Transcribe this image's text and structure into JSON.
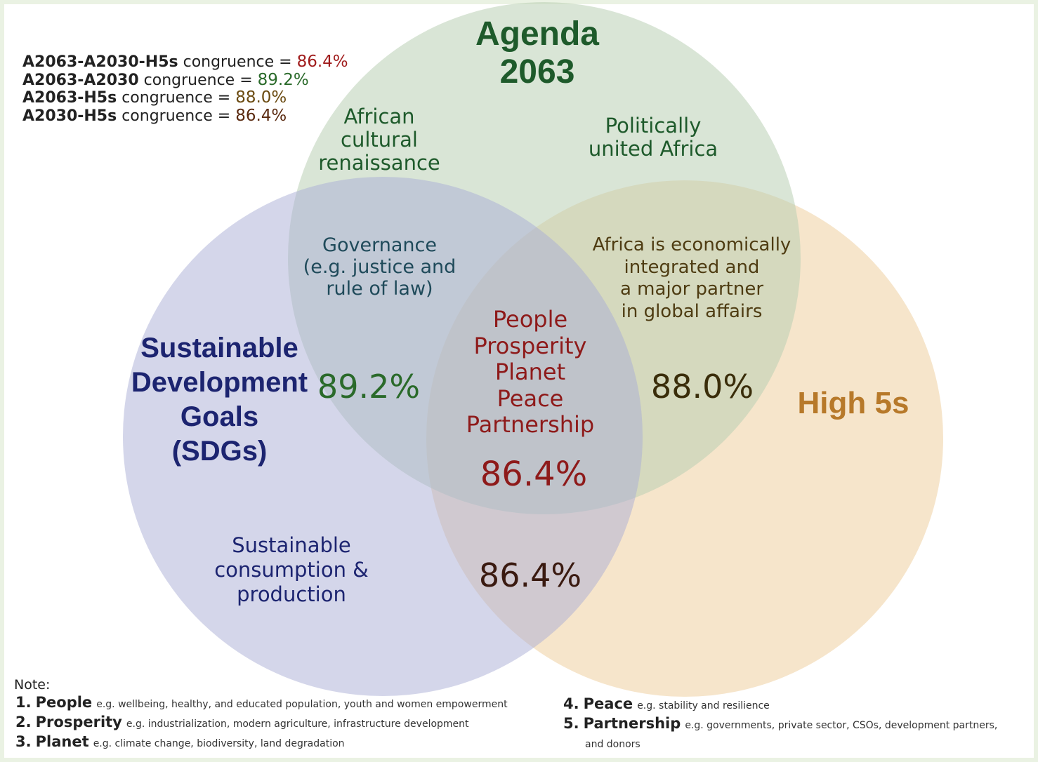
{
  "circles": {
    "agenda": {
      "title_line1": "Agenda",
      "title_line2": "2063",
      "fill": "#d4e2d0",
      "text_color": "#1e5a2b"
    },
    "sdg": {
      "title_lines": [
        "Sustainable",
        "Development",
        "Goals",
        "(SDGs)"
      ],
      "fill": "#cdd0e6",
      "text_color": "#1c2470"
    },
    "high5": {
      "title": "High 5s",
      "fill": "#f3dcb9",
      "text_color": "#b7792a"
    }
  },
  "regions": {
    "agenda_only_left": [
      "African",
      "cultural",
      "renaissance"
    ],
    "agenda_only_right": [
      "Politically",
      "united Africa"
    ],
    "agenda_sdg": [
      "Governance",
      "(e.g. justice and",
      "rule of law)"
    ],
    "agenda_sdg_value": "89.2%",
    "agenda_high5": [
      "Africa is economically",
      "integrated and",
      "a major partner",
      "in global affairs"
    ],
    "agenda_high5_value": "88.0%",
    "center": [
      "People",
      "Prosperity",
      "Planet",
      "Peace",
      "Partnership"
    ],
    "center_value": "86.4%",
    "sdg_only": [
      "Sustainable",
      "consumption &",
      "production"
    ],
    "sdg_high5_value": "86.4%"
  },
  "summary": [
    {
      "label": "A2063-A2030-H5s",
      "text": "congruence",
      "eq": " = ",
      "value": "86.4%",
      "color": "#a01c1c"
    },
    {
      "label": "A2063-A2030",
      "text": "congruence",
      "eq": " = ",
      "value": "89.2%",
      "color": "#2a6a2a"
    },
    {
      "label": "A2063-H5s",
      "text": "congruence",
      "eq": " = ",
      "value": "88.0%",
      "color": "#6a4a10"
    },
    {
      "label": "A2030-H5s",
      "text": "congruence",
      "eq": " = ",
      "value": "86.4%",
      "color": "#5a2a10"
    }
  ],
  "note": {
    "heading": "Note:",
    "items": [
      {
        "num": "1.",
        "name": "People",
        "desc": "e.g. wellbeing, healthy, and educated population, youth and women empowerment"
      },
      {
        "num": "2.",
        "name": "Prosperity",
        "desc": "e.g. industrialization, modern agriculture, infrastructure development"
      },
      {
        "num": "3.",
        "name": "Planet",
        "desc": "e.g. climate change, biodiversity, land degradation"
      },
      {
        "num": "4.",
        "name": "Peace",
        "desc": "e.g. stability and resilience"
      },
      {
        "num": "5.",
        "name": "Partnership",
        "desc": "e.g. governments, private sector, CSOs, development partners,"
      },
      {
        "num": "",
        "name": "",
        "desc": "and donors"
      }
    ]
  }
}
